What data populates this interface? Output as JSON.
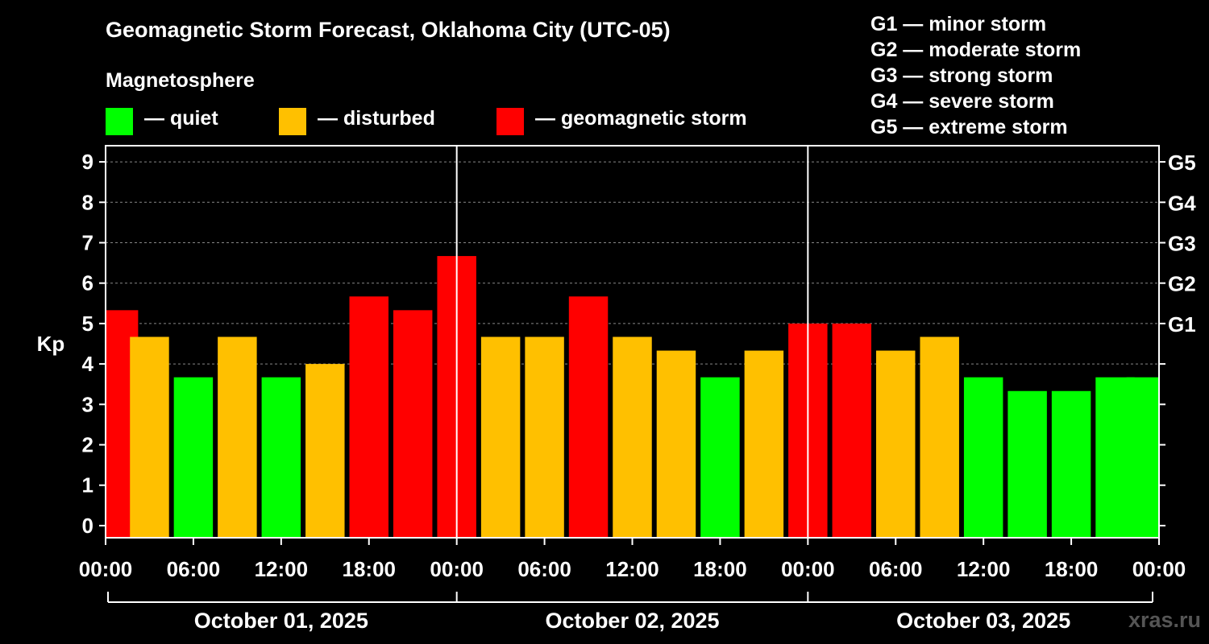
{
  "title": "Geomagnetic Storm Forecast, Oklahoma City (UTC-05)",
  "subtitle": "Magnetosphere",
  "legend": [
    {
      "color": "#00ff00",
      "label": "— quiet"
    },
    {
      "color": "#ffc000",
      "label": "— disturbed"
    },
    {
      "color": "#ff0000",
      "label": "— geomagnetic storm"
    }
  ],
  "storm_scale": [
    "G1 — minor storm",
    "G2 — moderate storm",
    "G3 — strong storm",
    "G4 — severe storm",
    "G5 — extreme storm"
  ],
  "watermark": "xras.ru",
  "colors": {
    "quiet": "#00ff00",
    "disturbed": "#ffc000",
    "storm": "#ff0000",
    "grid": "#888888",
    "axis": "#ffffff"
  },
  "chart_data": {
    "type": "bar",
    "title": "Geomagnetic Storm Forecast, Oklahoma City (UTC-05)",
    "ylabel": "Kp",
    "ylim": [
      -0.3,
      9.4
    ],
    "yticks": [
      0,
      1,
      2,
      3,
      4,
      5,
      6,
      7,
      8,
      9
    ],
    "right_ticks": [
      {
        "value": 5,
        "label": "G1"
      },
      {
        "value": 6,
        "label": "G2"
      },
      {
        "value": 7,
        "label": "G3"
      },
      {
        "value": 8,
        "label": "G4"
      },
      {
        "value": 9,
        "label": "G5"
      }
    ],
    "x_hours_range": [
      -1.5,
      70.5
    ],
    "xtick_hours": [
      0,
      6,
      12,
      18,
      24,
      30,
      36,
      42,
      48,
      54,
      60,
      66,
      72
    ],
    "xtick_labels": [
      "00:00",
      "06:00",
      "12:00",
      "18:00",
      "00:00",
      "06:00",
      "12:00",
      "18:00",
      "00:00",
      "06:00",
      "12:00",
      "18:00",
      "00:00"
    ],
    "day_separators_hours": [
      22.5,
      46.5
    ],
    "days": [
      {
        "label": "October 01, 2025",
        "start_hour": -1.5,
        "end_hour": 22.5
      },
      {
        "label": "October 02, 2025",
        "start_hour": 22.5,
        "end_hour": 46.5
      },
      {
        "label": "October 03, 2025",
        "start_hour": 46.5,
        "end_hour": 70.5
      }
    ],
    "grid": true,
    "bars": [
      {
        "center_hour": -1.5,
        "half_width": 0.833,
        "kp": 5.33,
        "level": "storm"
      },
      {
        "center_hour": 1.5,
        "kp": 4.67,
        "level": "disturbed"
      },
      {
        "center_hour": 4.5,
        "kp": 3.67,
        "level": "quiet"
      },
      {
        "center_hour": 7.5,
        "kp": 4.67,
        "level": "disturbed"
      },
      {
        "center_hour": 10.5,
        "kp": 3.67,
        "level": "quiet"
      },
      {
        "center_hour": 13.5,
        "kp": 4.0,
        "level": "disturbed"
      },
      {
        "center_hour": 16.5,
        "kp": 5.67,
        "level": "storm"
      },
      {
        "center_hour": 19.5,
        "kp": 5.33,
        "level": "storm"
      },
      {
        "center_hour": 22.5,
        "kp": 6.67,
        "level": "storm"
      },
      {
        "center_hour": 25.5,
        "kp": 4.67,
        "level": "disturbed"
      },
      {
        "center_hour": 28.5,
        "kp": 4.67,
        "level": "disturbed"
      },
      {
        "center_hour": 31.5,
        "kp": 5.67,
        "level": "storm"
      },
      {
        "center_hour": 34.5,
        "kp": 4.67,
        "level": "disturbed"
      },
      {
        "center_hour": 37.5,
        "kp": 4.33,
        "level": "disturbed"
      },
      {
        "center_hour": 40.5,
        "kp": 3.67,
        "level": "quiet"
      },
      {
        "center_hour": 43.5,
        "kp": 4.33,
        "level": "disturbed"
      },
      {
        "center_hour": 46.5,
        "kp": 5.0,
        "level": "storm"
      },
      {
        "center_hour": 49.5,
        "kp": 5.0,
        "level": "storm"
      },
      {
        "center_hour": 52.5,
        "kp": 4.33,
        "level": "disturbed"
      },
      {
        "center_hour": 55.5,
        "kp": 4.67,
        "level": "disturbed"
      },
      {
        "center_hour": 58.5,
        "kp": 3.67,
        "level": "quiet"
      },
      {
        "center_hour": 61.5,
        "kp": 3.33,
        "level": "quiet"
      },
      {
        "center_hour": 64.5,
        "kp": 3.33,
        "level": "quiet"
      },
      {
        "center_hour": 67.5,
        "kp": 3.67,
        "level": "quiet"
      },
      {
        "center_hour": 70.5,
        "half_width": 0.833,
        "kp": 3.67,
        "level": "quiet"
      }
    ]
  }
}
